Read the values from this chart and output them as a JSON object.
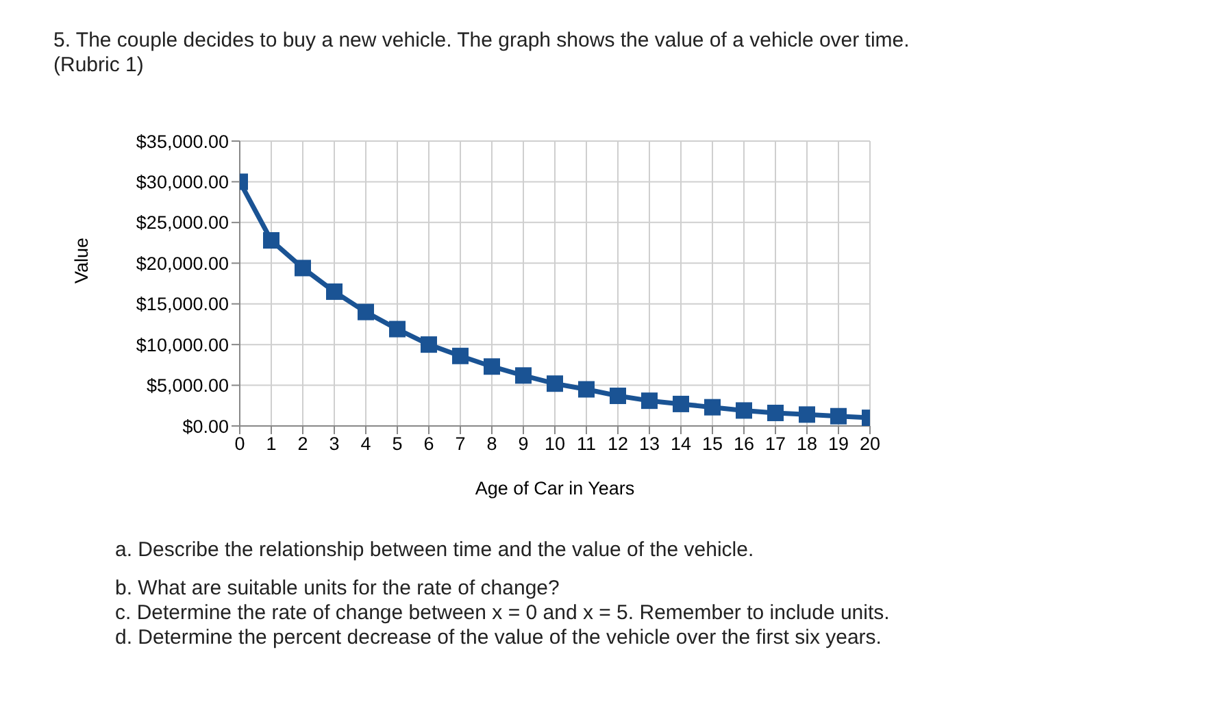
{
  "chart_data": {
    "type": "line",
    "title": "5.  The couple decides to buy a new vehicle.   The graph shows the value of a vehicle over time.",
    "annotations": [
      "(Rubric 1)",
      "a.  Describe the relationship between time and the value of the vehicle.",
      "b.  What are suitable units for the rate of change?",
      "c.  Determine the rate of change between x = 0  and x = 5.   Remember to include units.",
      "d.  Determine the percent decrease of the value of the vehicle over the first six years."
    ],
    "xlabel": "Age of Car in Years",
    "ylabel": "Value",
    "x": [
      0,
      1,
      2,
      3,
      4,
      5,
      6,
      7,
      8,
      9,
      10,
      11,
      12,
      13,
      14,
      15,
      16,
      17,
      18,
      19,
      20
    ],
    "series": [
      {
        "color": "#1a5394",
        "values": [
          30000,
          22800,
          19400,
          16500,
          14000,
          11900,
          10000,
          8600,
          7300,
          6200,
          5200,
          4500,
          3700,
          3100,
          2700,
          2300,
          1900,
          1600,
          1400,
          1200,
          1000
        ]
      }
    ],
    "xlim": [
      0,
      20
    ],
    "xticks": [
      0,
      1,
      2,
      3,
      4,
      5,
      6,
      7,
      8,
      9,
      10,
      11,
      12,
      13,
      14,
      15,
      16,
      17,
      18,
      19,
      20
    ],
    "ylim": [
      0,
      35000
    ],
    "yticks": [
      {
        "value": 0,
        "label": "$0.00"
      },
      {
        "value": 5000,
        "label": "$5,000.00"
      },
      {
        "value": 10000,
        "label": "$10,000.00"
      },
      {
        "value": 15000,
        "label": "$15,000.00"
      },
      {
        "value": 20000,
        "label": "$20,000.00"
      },
      {
        "value": 25000,
        "label": "$25,000.00"
      },
      {
        "value": 30000,
        "label": "$30,000.00"
      },
      {
        "value": 35000,
        "label": "$35,000.00"
      }
    ],
    "grid": true,
    "marker": "square",
    "line_style": "solid",
    "legend": false
  }
}
